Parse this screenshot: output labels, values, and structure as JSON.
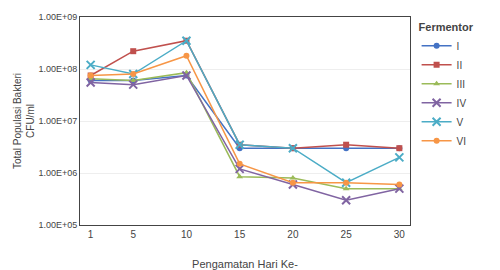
{
  "chart_data": {
    "type": "line",
    "xlabel": "Pengamatan Hari Ke-",
    "ylabel": "Total Populasi Bakteri\nCFU/ml",
    "legend_title": "Fermentor",
    "x": [
      1,
      5,
      10,
      15,
      20,
      25,
      30
    ],
    "series": [
      {
        "name": "I",
        "color": "#4472C4",
        "marker": "circle",
        "values": [
          60000000.0,
          60000000.0,
          75000000.0,
          3000000.0,
          3000000.0,
          3000000.0,
          3000000.0
        ]
      },
      {
        "name": "II",
        "color": "#C0504D",
        "marker": "square",
        "values": [
          75000000.0,
          220000000.0,
          350000000.0,
          3500000.0,
          3000000.0,
          3500000.0,
          3000000.0
        ]
      },
      {
        "name": "III",
        "color": "#9BBB59",
        "marker": "triangle",
        "values": [
          65000000.0,
          60000000.0,
          85000000.0,
          850000.0,
          800000.0,
          500000.0,
          500000.0
        ]
      },
      {
        "name": "IV",
        "color": "#8064A2",
        "marker": "x",
        "values": [
          55000000.0,
          50000000.0,
          75000000.0,
          1200000.0,
          600000.0,
          300000.0,
          500000.0
        ]
      },
      {
        "name": "V",
        "color": "#4BACC6",
        "marker": "x",
        "values": [
          120000000.0,
          80000000.0,
          350000000.0,
          3500000.0,
          3000000.0,
          650000.0,
          2000000.0
        ]
      },
      {
        "name": "VI",
        "color": "#F79646",
        "marker": "circle",
        "values": [
          75000000.0,
          80000000.0,
          180000000.0,
          1500000.0,
          650000.0,
          650000.0,
          600000.0
        ]
      }
    ],
    "xlim": [
      0,
      31
    ],
    "xticks": [
      1,
      5,
      10,
      15,
      20,
      25,
      30
    ],
    "ylim": [
      100000,
      1000000000
    ],
    "yticks": [
      {
        "value": 100000,
        "label": "1.00E+05"
      },
      {
        "value": 1000000,
        "label": "1.00E+06"
      },
      {
        "value": 10000000,
        "label": "1.00E+07"
      },
      {
        "value": 100000000,
        "label": "1.00E+08"
      },
      {
        "value": 1000000000,
        "label": "1.00E+09"
      }
    ],
    "log": "y",
    "grid": "y",
    "legend": "right"
  }
}
